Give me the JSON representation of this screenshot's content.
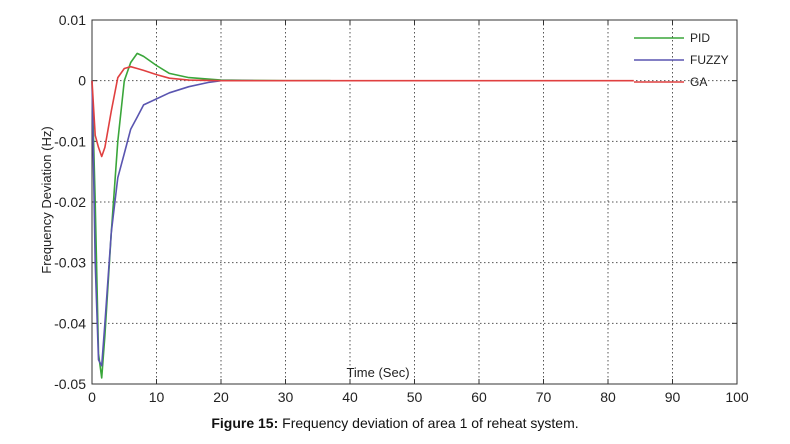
{
  "chart_data": {
    "type": "line",
    "title": "",
    "xlabel": "Time (Sec)",
    "ylabel": "Frequency Deviation (Hz)",
    "xlim": [
      0,
      100
    ],
    "ylim": [
      -0.05,
      0.01
    ],
    "x_ticks": [
      "0",
      "10",
      "20",
      "30",
      "40",
      "50",
      "60",
      "70",
      "80",
      "90",
      "100"
    ],
    "y_ticks": [
      "0.01",
      "0",
      "-0.01",
      "-0.02",
      "-0.03",
      "-0.04",
      "-0.05"
    ],
    "grid": true,
    "legend_position": "top-right",
    "series": [
      {
        "name": "PID",
        "color": "#3aa63a",
        "x": [
          0,
          0.5,
          1,
          1.5,
          2,
          3,
          4,
          5,
          6,
          7,
          8,
          10,
          12,
          15,
          20,
          25,
          30,
          37
        ],
        "y": [
          0,
          -0.02,
          -0.045,
          -0.049,
          -0.042,
          -0.025,
          -0.01,
          0.0,
          0.003,
          0.0045,
          0.004,
          0.0025,
          0.0012,
          0.0005,
          0.0001,
          5e-05,
          0.0,
          0.0
        ]
      },
      {
        "name": "FUZZY",
        "color": "#5a55b0",
        "x": [
          0,
          0.5,
          1,
          1.5,
          2,
          3,
          4,
          5,
          6,
          7,
          8,
          10,
          12,
          15,
          18,
          20,
          25
        ],
        "y": [
          0,
          -0.03,
          -0.046,
          -0.047,
          -0.04,
          -0.025,
          -0.016,
          -0.012,
          -0.008,
          -0.006,
          -0.004,
          -0.003,
          -0.002,
          -0.001,
          -0.0003,
          0.0,
          0.0
        ]
      },
      {
        "name": "GA",
        "color": "#e04040",
        "x": [
          0,
          0.5,
          1,
          1.5,
          2,
          3,
          4,
          5,
          6,
          7,
          8,
          10,
          12,
          15,
          20,
          30,
          40,
          60,
          84
        ],
        "y": [
          0,
          -0.009,
          -0.011,
          -0.0125,
          -0.011,
          -0.005,
          0.0005,
          0.002,
          0.0023,
          0.002,
          0.0017,
          0.001,
          0.0004,
          0.0001,
          0.0,
          0.0,
          0.0,
          0.0,
          0.0
        ]
      }
    ]
  },
  "caption": {
    "label": "Figure 15:",
    "text": " Frequency deviation of area 1 of reheat system."
  }
}
